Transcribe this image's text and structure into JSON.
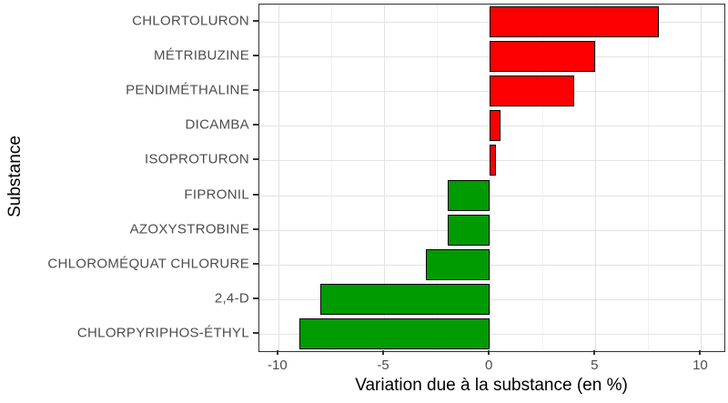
{
  "chart_data": {
    "type": "bar",
    "orientation": "horizontal",
    "title": "",
    "xlabel": "Variation due à la substance (en %)",
    "ylabel": "Substance",
    "categories": [
      "CHLORTOLURON",
      "MÉTRIBUZINE",
      "PENDIMÉTHALINE",
      "DICAMBA",
      "ISOPROTURON",
      "FIPRONIL",
      "AZOXYSTROBINE",
      "CHLOROMÉQUAT CHLORURE",
      "2,4-D",
      "CHLORPYRIPHOS-ÉTHYL"
    ],
    "values": [
      8,
      5,
      4,
      0.5,
      0.3,
      -2,
      -2,
      -3,
      -8,
      -9
    ],
    "x_ticks": [
      -10,
      -5,
      0,
      5,
      10
    ],
    "x_minor_gridlines": [
      -7.5,
      -2.5,
      2.5,
      7.5
    ],
    "xlim": [
      -10.9,
      11.1
    ],
    "grid": true,
    "legend": false,
    "bar_colors": {
      "positive": "#fc0000",
      "negative": "#009b00"
    }
  },
  "colors": {
    "background": "#ffffff",
    "panel_border": "#333333",
    "grid_major": "#e3e3e3",
    "grid_minor": "#f2f2f2",
    "tick_mark": "#333333",
    "tick_label": "#4d4d4d",
    "axis_title": "#000000",
    "bar_border": "#000000"
  }
}
